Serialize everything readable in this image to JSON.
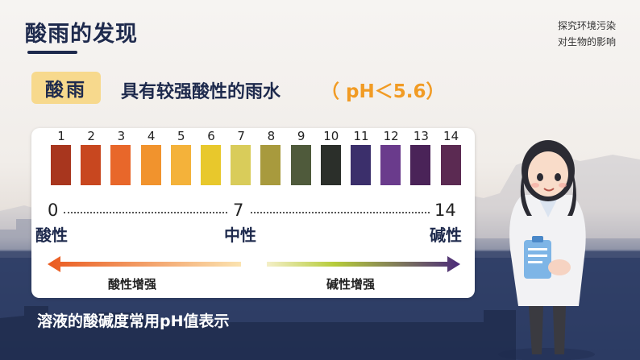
{
  "slide": {
    "title": "酸雨的发现",
    "top_right_lines": [
      "探究环境污染",
      "对生物的影响"
    ]
  },
  "definition": {
    "tag": "酸雨",
    "text": "具有较强酸性的雨水",
    "ph_range": "（ pH＜5.6）"
  },
  "ph_scale": {
    "swatches": [
      {
        "number": "1",
        "color": "#a8361e"
      },
      {
        "number": "2",
        "color": "#c8471f"
      },
      {
        "number": "3",
        "color": "#e8672a"
      },
      {
        "number": "4",
        "color": "#f1932d"
      },
      {
        "number": "5",
        "color": "#f4b23a"
      },
      {
        "number": "6",
        "color": "#e8c82c"
      },
      {
        "number": "7",
        "color": "#d9cc5a"
      },
      {
        "number": "8",
        "color": "#a89a3d"
      },
      {
        "number": "9",
        "color": "#4f5a3b"
      },
      {
        "number": "10",
        "color": "#2b2f2a"
      },
      {
        "number": "11",
        "color": "#3b2f6b"
      },
      {
        "number": "12",
        "color": "#6a3b8c"
      },
      {
        "number": "13",
        "color": "#4a2358"
      },
      {
        "number": "14",
        "color": "#5b2a52"
      }
    ],
    "scale_start": "0",
    "scale_mid": "7",
    "scale_end": "14",
    "label_acid": "酸性",
    "label_neutral": "中性",
    "label_base": "碱性",
    "arrow_left_label": "酸性增强",
    "arrow_right_label": "碱性增强"
  },
  "caption": "溶液的酸碱度常用pH值表示",
  "icons": [
    "scientist-character"
  ]
}
